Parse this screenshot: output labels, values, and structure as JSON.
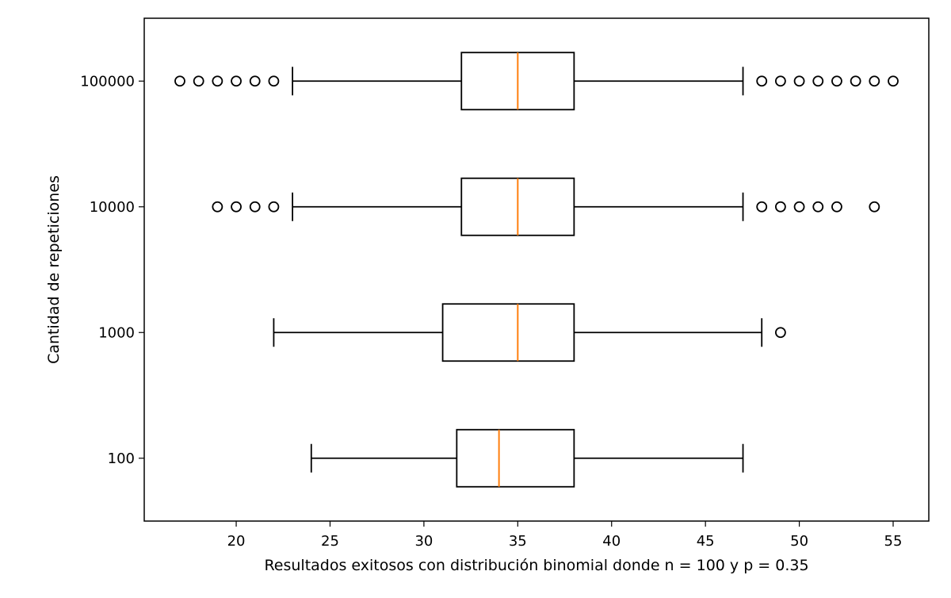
{
  "chart_data": {
    "type": "boxplot",
    "orientation": "horizontal",
    "xlabel": "Resultados exitosos con distribución binomial donde n = 100 y p = 0.35",
    "ylabel": "Cantidad de repeticiones",
    "xlim": [
      15.1,
      56.9
    ],
    "xticks": [
      20,
      25,
      30,
      35,
      40,
      45,
      50,
      55
    ],
    "grid": false,
    "colors": {
      "box": "#000000",
      "median": "#ff7f0e",
      "flier": "#000000"
    },
    "categories": [
      "100",
      "1000",
      "10000",
      "100000"
    ],
    "series": [
      {
        "category": "100",
        "whisker_low": 24,
        "q1": 31.75,
        "median": 34,
        "q3": 38,
        "whisker_high": 47,
        "outliers": []
      },
      {
        "category": "1000",
        "whisker_low": 22,
        "q1": 31,
        "median": 35,
        "q3": 38,
        "whisker_high": 48,
        "outliers": [
          49
        ]
      },
      {
        "category": "10000",
        "whisker_low": 23,
        "q1": 32,
        "median": 35,
        "q3": 38,
        "whisker_high": 47,
        "outliers": [
          19,
          20,
          21,
          22,
          48,
          49,
          50,
          51,
          52,
          54
        ]
      },
      {
        "category": "100000",
        "whisker_low": 23,
        "q1": 32,
        "median": 35,
        "q3": 38,
        "whisker_high": 47,
        "outliers": [
          17,
          18,
          19,
          20,
          21,
          22,
          48,
          49,
          50,
          51,
          52,
          53,
          54,
          55
        ]
      }
    ]
  }
}
